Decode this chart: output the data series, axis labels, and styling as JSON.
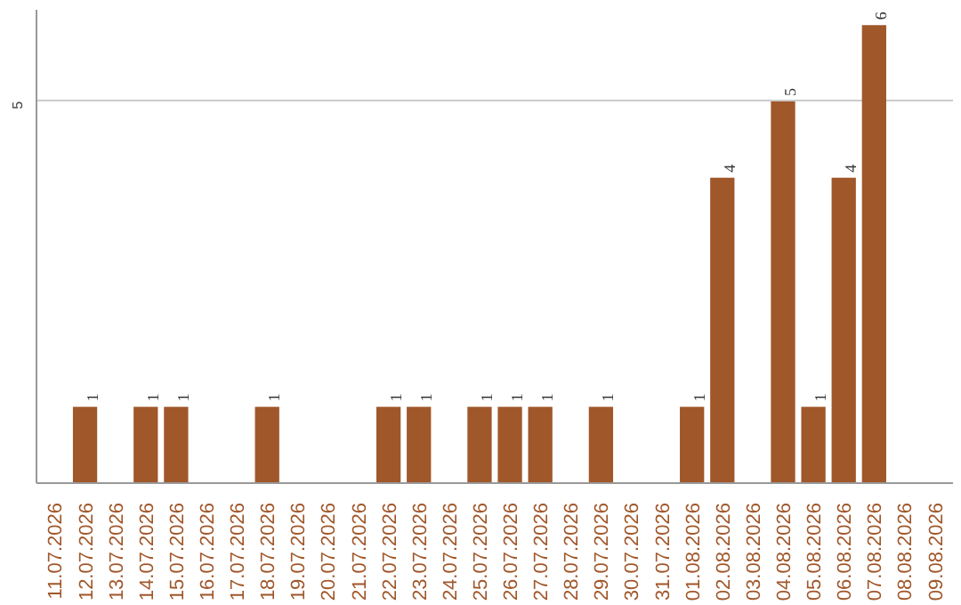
{
  "chart_data": {
    "type": "bar",
    "categories": [
      "11.07.2026",
      "12.07.2026",
      "13.07.2026",
      "14.07.2026",
      "15.07.2026",
      "16.07.2026",
      "17.07.2026",
      "18.07.2026",
      "19.07.2026",
      "20.07.2026",
      "21.07.2026",
      "22.07.2026",
      "23.07.2026",
      "24.07.2026",
      "25.07.2026",
      "26.07.2026",
      "27.07.2026",
      "28.07.2026",
      "29.07.2026",
      "30.07.2026",
      "31.07.2026",
      "01.08.2026",
      "02.08.2026",
      "03.08.2026",
      "04.08.2026",
      "05.08.2026",
      "06.08.2026",
      "07.08.2026",
      "08.08.2026",
      "09.08.2026"
    ],
    "values": [
      0,
      1,
      0,
      1,
      1,
      0,
      0,
      1,
      0,
      0,
      0,
      1,
      1,
      0,
      1,
      1,
      1,
      0,
      1,
      0,
      0,
      1,
      4,
      0,
      5,
      1,
      4,
      6,
      0,
      0
    ],
    "value_labels": [
      null,
      "1",
      null,
      "1",
      "1",
      null,
      null,
      "1",
      null,
      null,
      null,
      "1",
      "1",
      null,
      "1",
      "1",
      "1",
      null,
      "1",
      null,
      null,
      "1",
      "4",
      null,
      "5",
      "1",
      "4",
      "6",
      null,
      null
    ],
    "color": "#a0572a",
    "ylim": [
      0,
      6.2
    ],
    "yticks": [
      5
    ],
    "grid": "y"
  }
}
